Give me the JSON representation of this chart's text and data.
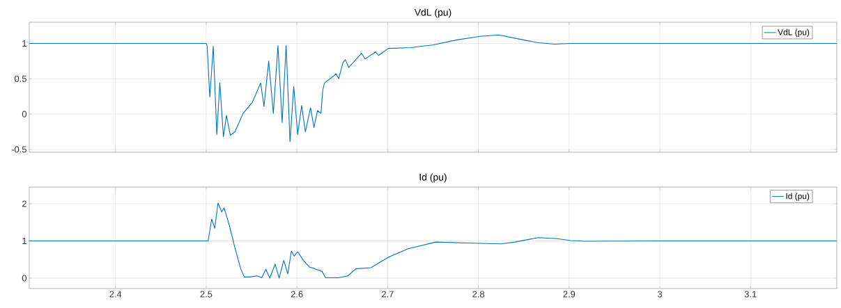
{
  "chart_data": [
    {
      "type": "line",
      "title": "VdL (pu)",
      "x": [
        2.305,
        2.4,
        2.5,
        2.501,
        2.504,
        2.5078,
        2.5117,
        2.515,
        2.519,
        2.5223,
        2.5266,
        2.5317,
        2.5407,
        2.551,
        2.56,
        2.5637,
        2.5689,
        2.574,
        2.5791,
        2.5837,
        2.5881,
        2.5924,
        2.5965,
        2.6008,
        2.6052,
        2.6093,
        2.615,
        2.6188,
        2.6227,
        2.6265,
        2.6285,
        2.6304,
        2.6406,
        2.643,
        2.646,
        2.6508,
        2.6534,
        2.657,
        2.6713,
        2.675,
        2.6867,
        2.69,
        2.7008,
        2.7251,
        2.7507,
        2.7764,
        2.802,
        2.8225,
        2.8456,
        2.866,
        2.884,
        2.9019,
        3.0,
        3.195
      ],
      "series": [
        {
          "name": "VdL (pu)",
          "color": "#0072bd",
          "values": [
            1.0,
            1.0,
            1.0,
            0.97,
            0.24,
            0.96,
            -0.29,
            0.44,
            -0.32,
            -0.02,
            -0.3,
            -0.25,
            0.01,
            0.17,
            0.44,
            0.11,
            0.75,
            0.01,
            0.97,
            -0.12,
            0.97,
            -0.39,
            0.39,
            -0.29,
            0.12,
            -0.25,
            0.09,
            -0.19,
            0.05,
            0.01,
            0.34,
            0.44,
            0.54,
            0.57,
            0.5,
            0.73,
            0.77,
            0.66,
            0.86,
            0.78,
            0.88,
            0.83,
            0.93,
            0.94,
            0.98,
            1.05,
            1.1,
            1.12,
            1.06,
            1.01,
            0.99,
            1.0,
            1.0,
            1.0
          ]
        }
      ],
      "xlim": [
        2.305,
        3.195
      ],
      "ylim": [
        -0.54,
        1.3
      ],
      "xticks": [
        2.4,
        2.5,
        2.6,
        2.7,
        2.8,
        2.9,
        3,
        3.1
      ],
      "yticks": [
        -0.5,
        0,
        0.5,
        1
      ],
      "grid": true,
      "legend": "top right",
      "tick_labels": "y"
    },
    {
      "type": "line",
      "title": "Id (pu)",
      "x": [
        2.305,
        2.4,
        2.5022,
        2.506,
        2.5094,
        2.513,
        2.5171,
        2.5197,
        2.5253,
        2.5317,
        2.5381,
        2.542,
        2.548,
        2.556,
        2.5612,
        2.5658,
        2.5701,
        2.576,
        2.5804,
        2.5855,
        2.5899,
        2.5939,
        2.597,
        2.6008,
        2.6073,
        2.6137,
        2.62,
        2.6277,
        2.6316,
        2.6457,
        2.656,
        2.665,
        2.6816,
        2.7008,
        2.7226,
        2.7533,
        2.7943,
        2.825,
        2.8404,
        2.866,
        2.8865,
        2.9019,
        2.9173,
        3.0,
        3.195
      ],
      "series": [
        {
          "name": "Id (pu)",
          "color": "#0072bd",
          "values": [
            1.0,
            1.0,
            1.0,
            1.59,
            1.34,
            2.02,
            1.78,
            1.89,
            1.44,
            0.81,
            0.25,
            0.03,
            0.03,
            0.06,
            0.01,
            0.24,
            0.0,
            0.38,
            0.0,
            0.48,
            0.11,
            0.73,
            0.59,
            0.71,
            0.47,
            0.3,
            0.25,
            0.18,
            0.01,
            0.01,
            0.06,
            0.25,
            0.28,
            0.56,
            0.79,
            0.97,
            0.94,
            0.92,
            0.97,
            1.09,
            1.06,
            1.01,
            0.99,
            1.0,
            1.0
          ]
        }
      ],
      "xlim": [
        2.305,
        3.195
      ],
      "ylim": [
        -0.28,
        2.45
      ],
      "xticks": [
        2.4,
        2.5,
        2.6,
        2.7,
        2.8,
        2.9,
        3,
        3.1
      ],
      "yticks": [
        0,
        1,
        2
      ],
      "grid": true,
      "legend": "top right"
    }
  ]
}
